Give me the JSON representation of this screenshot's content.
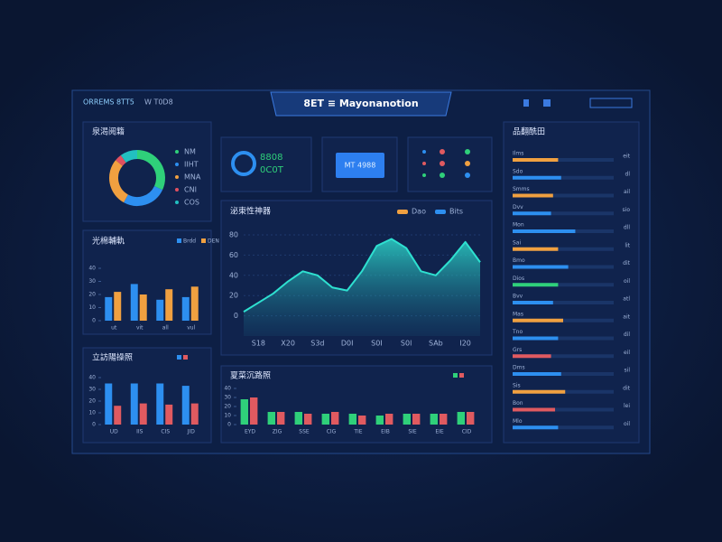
{
  "header": {
    "brand": "ORREMS 8TT5",
    "tag": "W  T0D8",
    "title": "8ET ≡ Mayonanotion"
  },
  "tiles": {
    "ring_top": "8808",
    "ring_bottom": "0C0T",
    "button": "MT 4988"
  },
  "chart_data": [
    {
      "type": "pie",
      "title": "泉渴阅籍",
      "categories": [
        "NM",
        "IIHT",
        "MNA",
        "CNI",
        "COS"
      ],
      "values": [
        32,
        26,
        28,
        4,
        10
      ],
      "colors": [
        "#2fd07a",
        "#2d8ff0",
        "#f0a040",
        "#e05060",
        "#22c0c0"
      ]
    },
    {
      "type": "bar",
      "title": "光棉輔軌",
      "categories": [
        "ut",
        "vit",
        "all",
        "vul"
      ],
      "series": [
        {
          "name": "Brdd",
          "color": "#2d8ff0",
          "values": [
            18,
            28,
            16,
            18
          ]
        },
        {
          "name": "DEN",
          "color": "#f0a040",
          "values": [
            22,
            20,
            24,
            26
          ]
        }
      ],
      "ylim": [
        0,
        40
      ],
      "yticks": [
        0,
        10,
        20,
        30,
        40
      ]
    },
    {
      "type": "bar",
      "title": "立訪陽操照",
      "categories": [
        "UD",
        "IIS",
        "CIS",
        "JID"
      ],
      "series": [
        {
          "color": "#2d8ff0",
          "values": [
            35,
            35,
            35,
            33
          ]
        },
        {
          "color": "#e05a60",
          "values": [
            16,
            18,
            17,
            18
          ]
        }
      ],
      "ylim": [
        0,
        40
      ],
      "yticks": [
        0,
        10,
        20,
        30,
        40
      ]
    },
    {
      "type": "area",
      "title": "泌東性神器",
      "legend": [
        {
          "label": "Dao",
          "color": "#f0a040"
        },
        {
          "label": "Bits",
          "color": "#2d8ff0"
        }
      ],
      "categories": [
        null,
        "S18",
        null,
        "X20",
        null,
        "S3d",
        null,
        "D0I",
        null,
        "S0I",
        null,
        "S0l",
        null,
        "SAb",
        null,
        "I20",
        null
      ],
      "series": [
        {
          "color": "#2ee0d0",
          "values": [
            4,
            13,
            22,
            34,
            44,
            40,
            28,
            25,
            44,
            69,
            76,
            67,
            44,
            40,
            55,
            73,
            53
          ]
        }
      ],
      "ylim": [
        -20,
        80
      ],
      "yticks": [
        0,
        20,
        40,
        60,
        80
      ]
    },
    {
      "type": "bar",
      "title": "夏菜沉路照",
      "categories": [
        "EYD",
        "ZIG",
        "SSE",
        "CIG",
        "TIE",
        "EIB",
        "SIE",
        "EIE",
        "CID"
      ],
      "series": [
        {
          "color": "#2fd07a",
          "values": [
            28,
            14,
            14,
            12,
            12,
            10,
            12,
            12,
            14
          ]
        },
        {
          "color": "#e05a60",
          "values": [
            30,
            14,
            12,
            14,
            10,
            12,
            12,
            12,
            14
          ]
        }
      ],
      "ylim": [
        0,
        40
      ],
      "yticks": [
        0,
        10,
        20,
        30,
        40
      ]
    },
    {
      "type": "hbar",
      "title": "品翻酰田",
      "categories": [
        "Ilms",
        "Sdo",
        "Smms",
        "Dvv",
        "Mon",
        "Sai",
        "Bmo",
        "Dios",
        "Bvv",
        "Mas",
        "Tno",
        "Grs",
        "Dms",
        "Sis",
        "Bon",
        "Mlo"
      ],
      "end_labels": [
        "eit",
        "dl",
        "ail",
        "sio",
        "dll",
        "lit",
        "dit",
        "oil",
        "atl",
        "ait",
        "dil",
        "eil",
        "sil",
        "dit",
        "lei",
        "oil"
      ],
      "values": [
        45,
        48,
        40,
        38,
        62,
        45,
        55,
        45,
        40,
        50,
        45,
        38,
        48,
        52,
        42,
        45
      ],
      "xlim": [
        0,
        100
      ],
      "colors": [
        "#f0a040",
        "#2d8ff0",
        "#f0a040",
        "#2d8ff0",
        "#2d8ff0",
        "#f0a040",
        "#2d8ff0",
        "#2fd07a",
        "#2d8ff0",
        "#f0a040",
        "#2d8ff0",
        "#e05a60",
        "#2d8ff0",
        "#f0a040",
        "#e05a60",
        "#2d8ff0"
      ]
    }
  ]
}
